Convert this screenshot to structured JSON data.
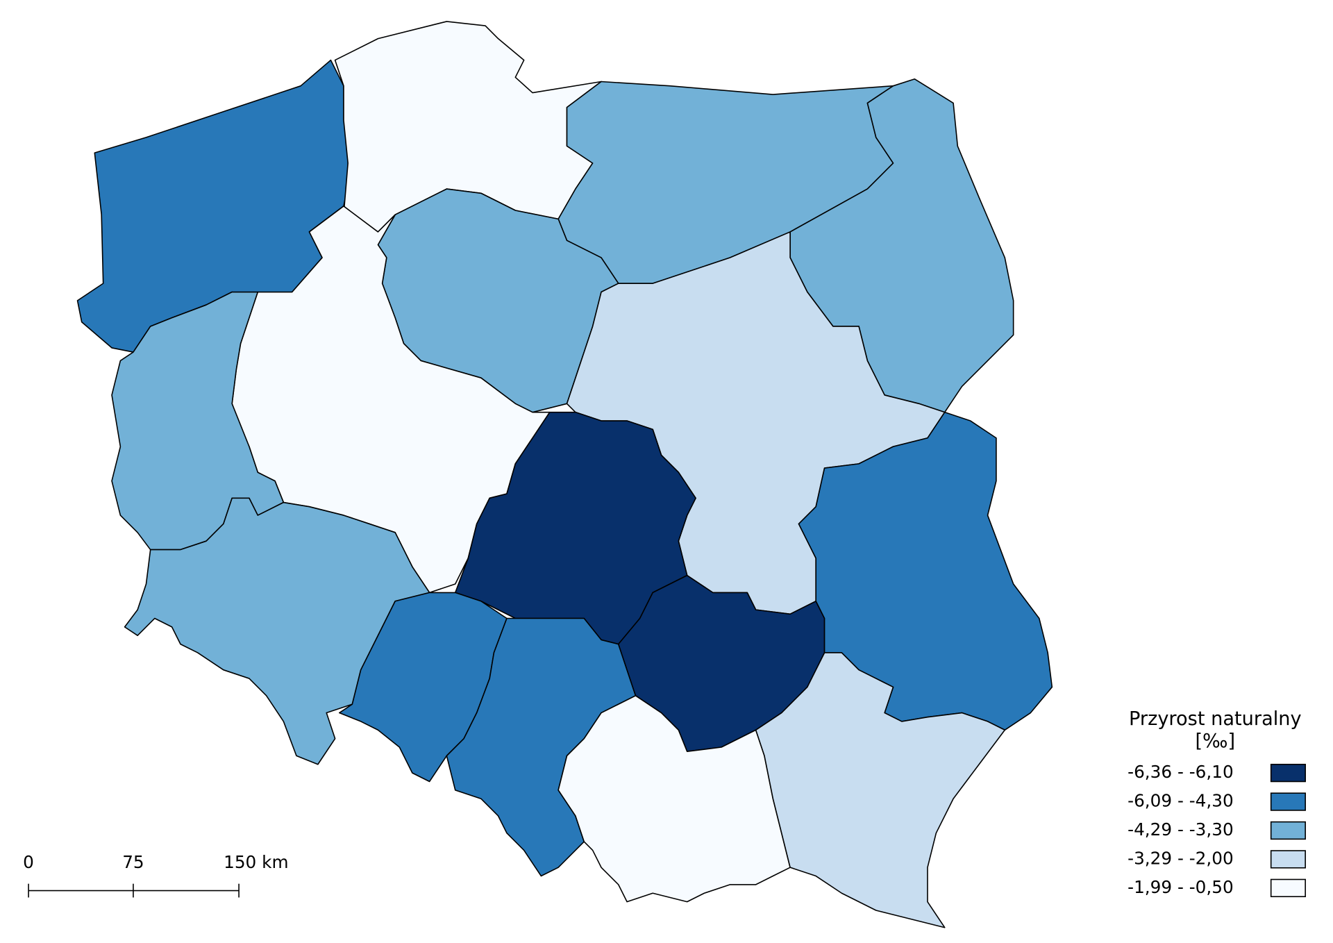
{
  "legend": {
    "title": "Przyrost naturalny",
    "subtitle": "[‰]",
    "items": [
      {
        "label": "-6,36 - -6,10",
        "color": "#08306b"
      },
      {
        "label": "-6,09 - -4,30",
        "color": "#2878b8"
      },
      {
        "label": "-4,29 - -3,30",
        "color": "#72b1d7"
      },
      {
        "label": "-3,29 - -2,00",
        "color": "#c8ddf0"
      },
      {
        "label": "-1,99 - -0,50",
        "color": "#f7fbff"
      }
    ]
  },
  "scale_bar": {
    "labels": [
      "0",
      "75",
      "150 km"
    ]
  }
}
